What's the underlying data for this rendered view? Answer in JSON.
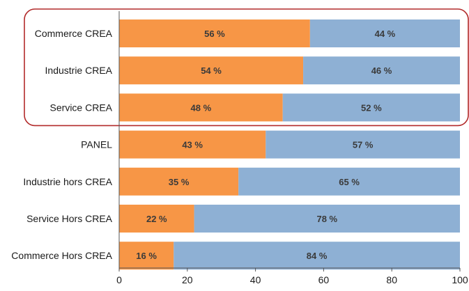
{
  "chart_data": {
    "type": "bar",
    "orientation": "horizontal",
    "stacked": true,
    "categories": [
      "Commerce CREA",
      "Industrie CREA",
      "Service CREA",
      "PANEL",
      "Industrie hors CREA",
      "Service Hors CREA",
      "Commerce Hors CREA"
    ],
    "series": [
      {
        "color": "#f79646",
        "values": [
          56,
          54,
          48,
          43,
          35,
          22,
          16
        ],
        "labels": [
          "56 %",
          "54 %",
          "48 %",
          "43 %",
          "35 %",
          "22 %",
          "16 %"
        ]
      },
      {
        "color": "#8eb0d4",
        "values": [
          44,
          46,
          52,
          57,
          65,
          78,
          84
        ],
        "labels": [
          "44 %",
          "46 %",
          "52 %",
          "57 %",
          "65 %",
          "78 %",
          "84 %"
        ]
      }
    ],
    "xlim": [
      0,
      100
    ],
    "xticks": [
      0,
      20,
      40,
      60,
      80,
      100
    ],
    "xtick_labels": [
      "0",
      "20",
      "40",
      "60",
      "80",
      "100"
    ],
    "grid": false,
    "highlight": {
      "categories": [
        "Commerce CREA",
        "Industrie CREA",
        "Service CREA"
      ],
      "color": "#b22a2a"
    }
  }
}
